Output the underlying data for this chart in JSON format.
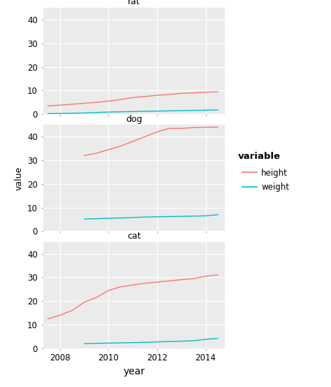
{
  "years": [
    2007.5,
    2008,
    2008.5,
    2009,
    2009.5,
    2010,
    2010.5,
    2011,
    2011.5,
    2012,
    2012.5,
    2013,
    2013.5,
    2014,
    2014.5
  ],
  "panels": [
    "rat",
    "dog",
    "cat"
  ],
  "rat": {
    "height": [
      3.5,
      3.8,
      4.2,
      4.6,
      5.0,
      5.5,
      6.2,
      7.0,
      7.5,
      8.0,
      8.3,
      8.8,
      9.0,
      9.3,
      9.5
    ],
    "weight": [
      0.2,
      0.3,
      0.4,
      0.5,
      0.7,
      0.9,
      1.0,
      1.1,
      1.2,
      1.3,
      1.4,
      1.5,
      1.6,
      1.7,
      1.8
    ]
  },
  "dog": {
    "height": [
      null,
      null,
      null,
      32.0,
      33.0,
      34.5,
      36.0,
      38.0,
      40.0,
      42.0,
      43.5,
      43.5,
      43.8,
      44.0,
      44.0
    ],
    "weight": [
      null,
      null,
      null,
      5.2,
      5.3,
      5.5,
      5.6,
      5.8,
      6.0,
      6.1,
      6.2,
      6.3,
      6.4,
      6.5,
      7.0
    ]
  },
  "cat": {
    "height": [
      12.5,
      14.0,
      16.0,
      19.5,
      21.5,
      24.5,
      26.0,
      26.8,
      27.5,
      28.0,
      28.5,
      29.0,
      29.5,
      30.5,
      31.0
    ],
    "weight": [
      null,
      null,
      null,
      2.0,
      2.1,
      2.2,
      2.3,
      2.4,
      2.5,
      2.7,
      2.9,
      3.0,
      3.2,
      3.8,
      4.2
    ]
  },
  "height_color": "#F8766D",
  "weight_color": "#00BFC4",
  "panel_bg": "#EBEBEB",
  "plot_bg": "#FFFFFF",
  "strip_bg": "#C8C8C8",
  "grid_color": "#FFFFFF",
  "ylim": [
    0,
    45
  ],
  "yticks": [
    0,
    10,
    20,
    30,
    40
  ],
  "xlim": [
    2007.3,
    2014.8
  ],
  "xticks": [
    2008,
    2010,
    2012,
    2014
  ],
  "ylabel": "value",
  "xlabel": "year",
  "legend_title": "variable",
  "legend_items": [
    "height",
    "weight"
  ],
  "strip_height_ratio": 0.08,
  "title_fontsize": 9,
  "axis_fontsize": 9,
  "tick_fontsize": 8.5
}
